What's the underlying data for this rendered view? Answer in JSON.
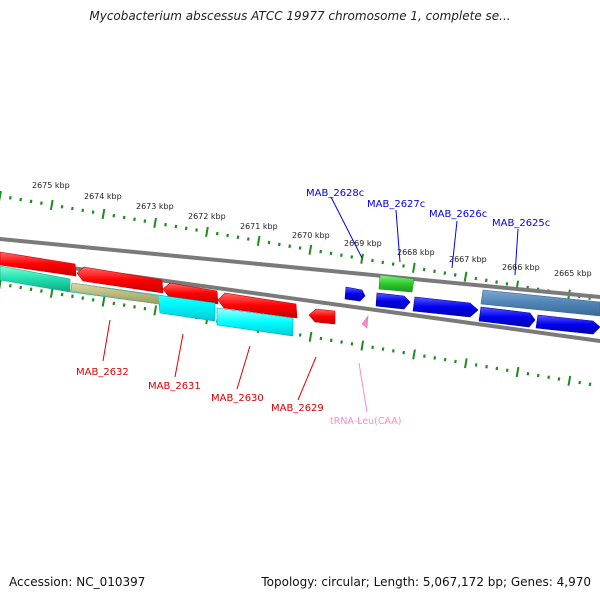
{
  "title": "Mycobacterium abscessus ATCC 19977 chromosome 1, complete se...",
  "footer": {
    "accession": "Accession: NC_010397",
    "summary": "Topology: circular; Length: 5,067,172 bp; Genes: 4,970"
  },
  "scale_labels": [
    "2675 kbp",
    "2674 kbp",
    "2673 kbp",
    "2672 kbp",
    "2671 kbp",
    "2670 kbp",
    "2669 kbp",
    "2668 kbp",
    "2667 kbp",
    "2666 kbp",
    "2665 kbp"
  ],
  "gene_labels": {
    "plus_strand": [
      "MAB_2628c",
      "MAB_2627c",
      "MAB_2626c",
      "MAB_2625c"
    ],
    "minus_strand": [
      "MAB_2632",
      "MAB_2631",
      "MAB_2630",
      "MAB_2629"
    ],
    "rna": "tRNA-Leu(CAA)"
  },
  "colors": {
    "minus_genes": "#ff0000",
    "plus_genes": "#0000ee",
    "cds_cyan": "#00ffff",
    "cds_teal": "#20e0b0",
    "cds_green": "#2ecc2e",
    "cds_steelblue": "#4f84b6",
    "cds_khaki": "#c8b46e",
    "trna": "#ff88cc",
    "backbone": "#7a7a7a",
    "ticks": "#1e8c1e"
  }
}
